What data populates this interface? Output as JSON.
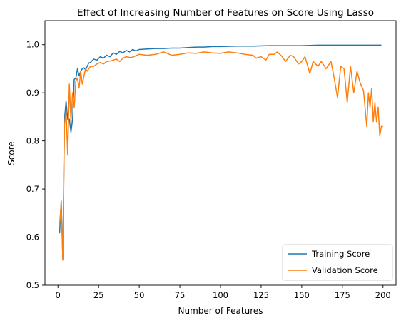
{
  "chart_data": {
    "type": "line",
    "title": "Effect of Increasing Number of Features on Score Using Lasso",
    "xlabel": "Number of Features",
    "ylabel": "Score",
    "xlim": [
      -8,
      208
    ],
    "ylim": [
      0.5,
      1.05
    ],
    "xticks": [
      0,
      25,
      50,
      75,
      100,
      125,
      150,
      175,
      200
    ],
    "yticks": [
      0.5,
      0.6,
      0.7,
      0.8,
      0.9,
      1.0
    ],
    "ytick_labels": [
      "0.5",
      "0.6",
      "0.7",
      "0.8",
      "0.9",
      "1.0"
    ],
    "grid": false,
    "legend": {
      "position": "bottom-right"
    },
    "series": [
      {
        "name": "Training Score",
        "color": "#1f77b4",
        "points": [
          [
            1,
            0.608
          ],
          [
            2,
            0.675
          ],
          [
            3,
            0.555
          ],
          [
            4,
            0.845
          ],
          [
            5,
            0.883
          ],
          [
            6,
            0.845
          ],
          [
            7,
            0.845
          ],
          [
            8,
            0.818
          ],
          [
            9,
            0.845
          ],
          [
            10,
            0.928
          ],
          [
            11,
            0.93
          ],
          [
            12,
            0.95
          ],
          [
            13,
            0.935
          ],
          [
            14,
            0.945
          ],
          [
            15,
            0.95
          ],
          [
            16,
            0.952
          ],
          [
            17,
            0.948
          ],
          [
            18,
            0.955
          ],
          [
            19,
            0.962
          ],
          [
            20,
            0.963
          ],
          [
            22,
            0.97
          ],
          [
            24,
            0.968
          ],
          [
            26,
            0.975
          ],
          [
            28,
            0.972
          ],
          [
            30,
            0.978
          ],
          [
            32,
            0.975
          ],
          [
            34,
            0.983
          ],
          [
            36,
            0.98
          ],
          [
            38,
            0.986
          ],
          [
            40,
            0.983
          ],
          [
            42,
            0.988
          ],
          [
            44,
            0.985
          ],
          [
            46,
            0.99
          ],
          [
            48,
            0.987
          ],
          [
            50,
            0.99
          ],
          [
            55,
            0.991
          ],
          [
            60,
            0.992
          ],
          [
            65,
            0.992
          ],
          [
            70,
            0.993
          ],
          [
            75,
            0.993
          ],
          [
            80,
            0.994
          ],
          [
            85,
            0.995
          ],
          [
            90,
            0.995
          ],
          [
            95,
            0.996
          ],
          [
            100,
            0.996
          ],
          [
            110,
            0.997
          ],
          [
            120,
            0.997
          ],
          [
            130,
            0.998
          ],
          [
            140,
            0.998
          ],
          [
            150,
            0.998
          ],
          [
            160,
            0.999
          ],
          [
            170,
            0.999
          ],
          [
            180,
            0.999
          ],
          [
            190,
            0.999
          ],
          [
            199,
            0.999
          ]
        ]
      },
      {
        "name": "Validation Score",
        "color": "#ff7f0e",
        "points": [
          [
            1,
            0.625
          ],
          [
            2,
            0.672
          ],
          [
            3,
            0.552
          ],
          [
            4,
            0.83
          ],
          [
            5,
            0.865
          ],
          [
            6,
            0.77
          ],
          [
            7,
            0.918
          ],
          [
            8,
            0.84
          ],
          [
            9,
            0.9
          ],
          [
            10,
            0.87
          ],
          [
            11,
            0.925
          ],
          [
            12,
            0.93
          ],
          [
            13,
            0.91
          ],
          [
            14,
            0.945
          ],
          [
            15,
            0.918
          ],
          [
            16,
            0.935
          ],
          [
            17,
            0.95
          ],
          [
            18,
            0.945
          ],
          [
            19,
            0.95
          ],
          [
            20,
            0.955
          ],
          [
            22,
            0.955
          ],
          [
            24,
            0.96
          ],
          [
            26,
            0.963
          ],
          [
            28,
            0.96
          ],
          [
            30,
            0.965
          ],
          [
            32,
            0.966
          ],
          [
            34,
            0.968
          ],
          [
            36,
            0.97
          ],
          [
            38,
            0.965
          ],
          [
            40,
            0.972
          ],
          [
            42,
            0.975
          ],
          [
            45,
            0.973
          ],
          [
            48,
            0.977
          ],
          [
            50,
            0.98
          ],
          [
            55,
            0.978
          ],
          [
            60,
            0.98
          ],
          [
            65,
            0.985
          ],
          [
            70,
            0.978
          ],
          [
            75,
            0.98
          ],
          [
            80,
            0.983
          ],
          [
            85,
            0.982
          ],
          [
            90,
            0.985
          ],
          [
            95,
            0.983
          ],
          [
            100,
            0.982
          ],
          [
            105,
            0.985
          ],
          [
            110,
            0.983
          ],
          [
            115,
            0.98
          ],
          [
            120,
            0.978
          ],
          [
            122,
            0.972
          ],
          [
            125,
            0.975
          ],
          [
            128,
            0.968
          ],
          [
            130,
            0.98
          ],
          [
            133,
            0.98
          ],
          [
            135,
            0.985
          ],
          [
            138,
            0.975
          ],
          [
            140,
            0.965
          ],
          [
            143,
            0.978
          ],
          [
            145,
            0.975
          ],
          [
            148,
            0.96
          ],
          [
            150,
            0.965
          ],
          [
            152,
            0.975
          ],
          [
            155,
            0.94
          ],
          [
            157,
            0.965
          ],
          [
            160,
            0.955
          ],
          [
            162,
            0.965
          ],
          [
            165,
            0.95
          ],
          [
            168,
            0.965
          ],
          [
            170,
            0.93
          ],
          [
            172,
            0.89
          ],
          [
            174,
            0.955
          ],
          [
            176,
            0.95
          ],
          [
            178,
            0.88
          ],
          [
            180,
            0.955
          ],
          [
            182,
            0.9
          ],
          [
            184,
            0.945
          ],
          [
            186,
            0.92
          ],
          [
            188,
            0.905
          ],
          [
            190,
            0.83
          ],
          [
            191,
            0.9
          ],
          [
            192,
            0.87
          ],
          [
            193,
            0.91
          ],
          [
            194,
            0.84
          ],
          [
            195,
            0.88
          ],
          [
            196,
            0.84
          ],
          [
            197,
            0.87
          ],
          [
            198,
            0.81
          ],
          [
            199,
            0.83
          ],
          [
            200,
            0.83
          ]
        ]
      }
    ]
  }
}
